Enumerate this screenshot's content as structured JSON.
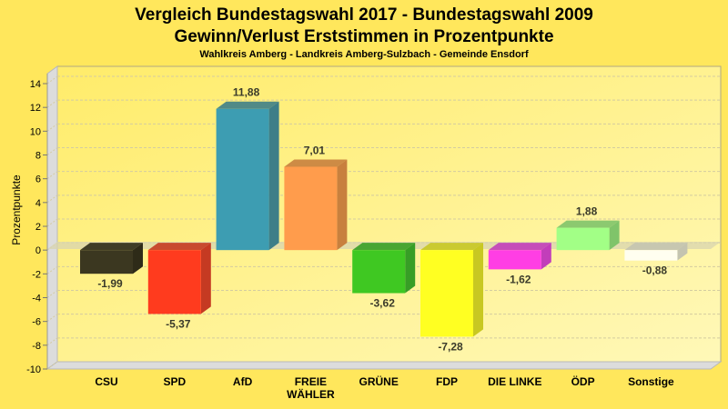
{
  "chart_data": {
    "type": "bar",
    "title": "Vergleich Bundestagswahl 2017 - Bundestagswahl 2009",
    "title_line2": "Gewinn/Verlust Erststimmen in Prozentpunkte",
    "subtitle": "Wahlkreis Amberg - Landkreis Amberg-Sulzbach - Gemeinde Ensdorf",
    "xlabel": "",
    "ylabel": "Prozentpunkte",
    "ylim": [
      -10,
      14
    ],
    "yticks": [
      14,
      12,
      10,
      8,
      6,
      4,
      2,
      0,
      -2,
      -4,
      -6,
      -8,
      -10
    ],
    "grid": true,
    "categories": [
      [
        "CSU"
      ],
      [
        "SPD"
      ],
      [
        "AfD"
      ],
      [
        "FREIE",
        "WÄHLER"
      ],
      [
        "GRÜNE"
      ],
      [
        "FDP"
      ],
      [
        "DIE LINKE"
      ],
      [
        "ÖDP"
      ],
      [
        "Sonstige"
      ]
    ],
    "values": [
      -1.99,
      -5.37,
      11.88,
      7.01,
      -3.62,
      -7.28,
      -1.62,
      1.88,
      -0.88
    ],
    "value_labels": [
      "-1,99",
      "-5,37",
      "11,88",
      "7,01",
      "-3,62",
      "-7,28",
      "-1,62",
      "1,88",
      "-0,88"
    ],
    "colors": [
      "#3b3720",
      "#ff3b1e",
      "#3d9db2",
      "#ff9c4c",
      "#3fc822",
      "#ffff22",
      "#ff3ee4",
      "#a2ff86",
      "#fffef0"
    ],
    "side_colors": [
      "#2e2b18",
      "#c53a22",
      "#3e7e88",
      "#c8803e",
      "#379e26",
      "#c8c822",
      "#c23eba",
      "#80c46a",
      "#c4c4b0"
    ]
  }
}
